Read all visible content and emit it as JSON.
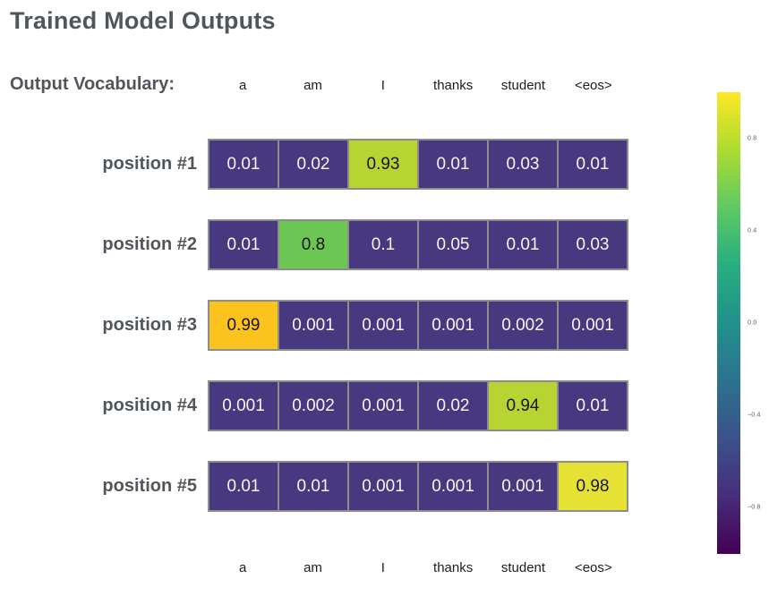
{
  "title": "Trained Model Outputs",
  "vocab": {
    "label": "Output Vocabulary:",
    "tokens": [
      "a",
      "am",
      "I",
      "thanks",
      "student",
      "<eos>"
    ]
  },
  "palette": {
    "low_purple": "#483880",
    "green": "#6bc653",
    "yellow_green": "#b8d433",
    "gold": "#fcc21d",
    "yellow": "#e6e234",
    "light_text": "#f5f5f5",
    "dark_text": "#141414",
    "label_gray": "#50565c",
    "cell_border": "#8d8d8d"
  },
  "rows": [
    {
      "label": "position #1",
      "cells": [
        {
          "text": "0.01",
          "bg": "#483880",
          "fg": "#f5f5f5"
        },
        {
          "text": "0.02",
          "bg": "#483880",
          "fg": "#f5f5f5"
        },
        {
          "text": "0.93",
          "bg": "#b8d433",
          "fg": "#141414"
        },
        {
          "text": "0.01",
          "bg": "#483880",
          "fg": "#f5f5f5"
        },
        {
          "text": "0.03",
          "bg": "#483880",
          "fg": "#f5f5f5"
        },
        {
          "text": "0.01",
          "bg": "#483880",
          "fg": "#f5f5f5"
        }
      ]
    },
    {
      "label": "position #2",
      "cells": [
        {
          "text": "0.01",
          "bg": "#483880",
          "fg": "#f5f5f5"
        },
        {
          "text": "0.8",
          "bg": "#6bc653",
          "fg": "#141414"
        },
        {
          "text": "0.1",
          "bg": "#483880",
          "fg": "#f5f5f5"
        },
        {
          "text": "0.05",
          "bg": "#483880",
          "fg": "#f5f5f5"
        },
        {
          "text": "0.01",
          "bg": "#483880",
          "fg": "#f5f5f5"
        },
        {
          "text": "0.03",
          "bg": "#483880",
          "fg": "#f5f5f5"
        }
      ]
    },
    {
      "label": "position #3",
      "cells": [
        {
          "text": "0.99",
          "bg": "#fcc21d",
          "fg": "#141414"
        },
        {
          "text": "0.001",
          "bg": "#483880",
          "fg": "#f5f5f5"
        },
        {
          "text": "0.001",
          "bg": "#483880",
          "fg": "#f5f5f5"
        },
        {
          "text": "0.001",
          "bg": "#483880",
          "fg": "#f5f5f5"
        },
        {
          "text": "0.002",
          "bg": "#483880",
          "fg": "#f5f5f5"
        },
        {
          "text": "0.001",
          "bg": "#483880",
          "fg": "#f5f5f5"
        }
      ]
    },
    {
      "label": "position #4",
      "cells": [
        {
          "text": "0.001",
          "bg": "#483880",
          "fg": "#f5f5f5"
        },
        {
          "text": "0.002",
          "bg": "#483880",
          "fg": "#f5f5f5"
        },
        {
          "text": "0.001",
          "bg": "#483880",
          "fg": "#f5f5f5"
        },
        {
          "text": "0.02",
          "bg": "#483880",
          "fg": "#f5f5f5"
        },
        {
          "text": "0.94",
          "bg": "#b8d433",
          "fg": "#141414"
        },
        {
          "text": "0.01",
          "bg": "#483880",
          "fg": "#f5f5f5"
        }
      ]
    },
    {
      "label": "position #5",
      "cells": [
        {
          "text": "0.01",
          "bg": "#483880",
          "fg": "#f5f5f5"
        },
        {
          "text": "0.01",
          "bg": "#483880",
          "fg": "#f5f5f5"
        },
        {
          "text": "0.001",
          "bg": "#483880",
          "fg": "#f5f5f5"
        },
        {
          "text": "0.001",
          "bg": "#483880",
          "fg": "#f5f5f5"
        },
        {
          "text": "0.001",
          "bg": "#483880",
          "fg": "#f5f5f5"
        },
        {
          "text": "0.98",
          "bg": "#e6e234",
          "fg": "#141414"
        }
      ]
    }
  ],
  "colorbar": {
    "gradient_top_to_bottom": [
      "#fde725",
      "#addc30",
      "#5ec962",
      "#28ae80",
      "#21918c",
      "#2c728e",
      "#3b528b",
      "#472d7b",
      "#440154"
    ],
    "ticks": [
      {
        "label": "0.8",
        "value": 0.8
      },
      {
        "label": "0.4",
        "value": 0.4
      },
      {
        "label": "0.0",
        "value": 0.0
      },
      {
        "label": "−0.4",
        "value": -0.4
      },
      {
        "label": "−0.8",
        "value": -0.8
      }
    ],
    "range": [
      -1,
      1
    ]
  },
  "chart_data": {
    "type": "heatmap",
    "title": "Trained Model Outputs",
    "x_categories": [
      "a",
      "am",
      "I",
      "thanks",
      "student",
      "<eos>"
    ],
    "y_categories": [
      "position #1",
      "position #2",
      "position #3",
      "position #4",
      "position #5"
    ],
    "values": [
      [
        0.01,
        0.02,
        0.93,
        0.01,
        0.03,
        0.01
      ],
      [
        0.01,
        0.8,
        0.1,
        0.05,
        0.01,
        0.03
      ],
      [
        0.99,
        0.001,
        0.001,
        0.001,
        0.002,
        0.001
      ],
      [
        0.001,
        0.002,
        0.001,
        0.02,
        0.94,
        0.01
      ],
      [
        0.01,
        0.01,
        0.001,
        0.001,
        0.001,
        0.98
      ]
    ],
    "colormap": "viridis",
    "colorbar_range": [
      -1,
      1
    ],
    "colorbar_ticks": [
      0.8,
      0.4,
      0.0,
      -0.4,
      -0.8
    ],
    "legend_position": "right",
    "grid": false
  }
}
